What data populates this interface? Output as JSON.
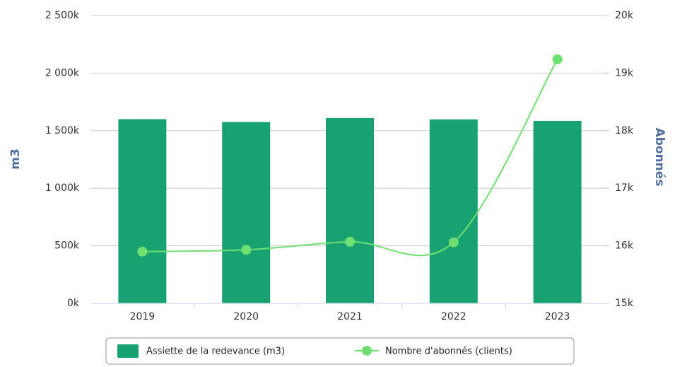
{
  "chart_data": {
    "type": "combo",
    "categories": [
      "2019",
      "2020",
      "2021",
      "2022",
      "2023"
    ],
    "series": [
      {
        "name": "Assiette de la redevance (m3)",
        "type": "bar",
        "color": "#19a271",
        "values": [
          1600000,
          1575000,
          1610000,
          1598000,
          1585000
        ]
      },
      {
        "name": "Nombre d'abonnés (clients)",
        "type": "line",
        "axis": "y2",
        "color": "#6fe06f",
        "values": [
          15900,
          15930,
          16070,
          16060,
          19240
        ]
      }
    ],
    "ylabel": "m3",
    "y2label": "Abonnés",
    "ylim": [
      0,
      2500000
    ],
    "yticks": [
      {
        "value": 0,
        "label": "0k"
      },
      {
        "value": 500000,
        "label": "500k"
      },
      {
        "value": 1000000,
        "label": "1 000k"
      },
      {
        "value": 1500000,
        "label": "1 500k"
      },
      {
        "value": 2000000,
        "label": "2 000k"
      },
      {
        "value": 2500000,
        "label": "2 500k"
      }
    ],
    "y2lim": [
      15000,
      20000
    ],
    "y2ticks": [
      {
        "value": 15000,
        "label": "15k"
      },
      {
        "value": 16000,
        "label": "16k"
      },
      {
        "value": 17000,
        "label": "17k"
      },
      {
        "value": 18000,
        "label": "18k"
      },
      {
        "value": 19000,
        "label": "19k"
      },
      {
        "value": 20000,
        "label": "20k"
      }
    ],
    "grid": true,
    "legend": "bottom"
  }
}
